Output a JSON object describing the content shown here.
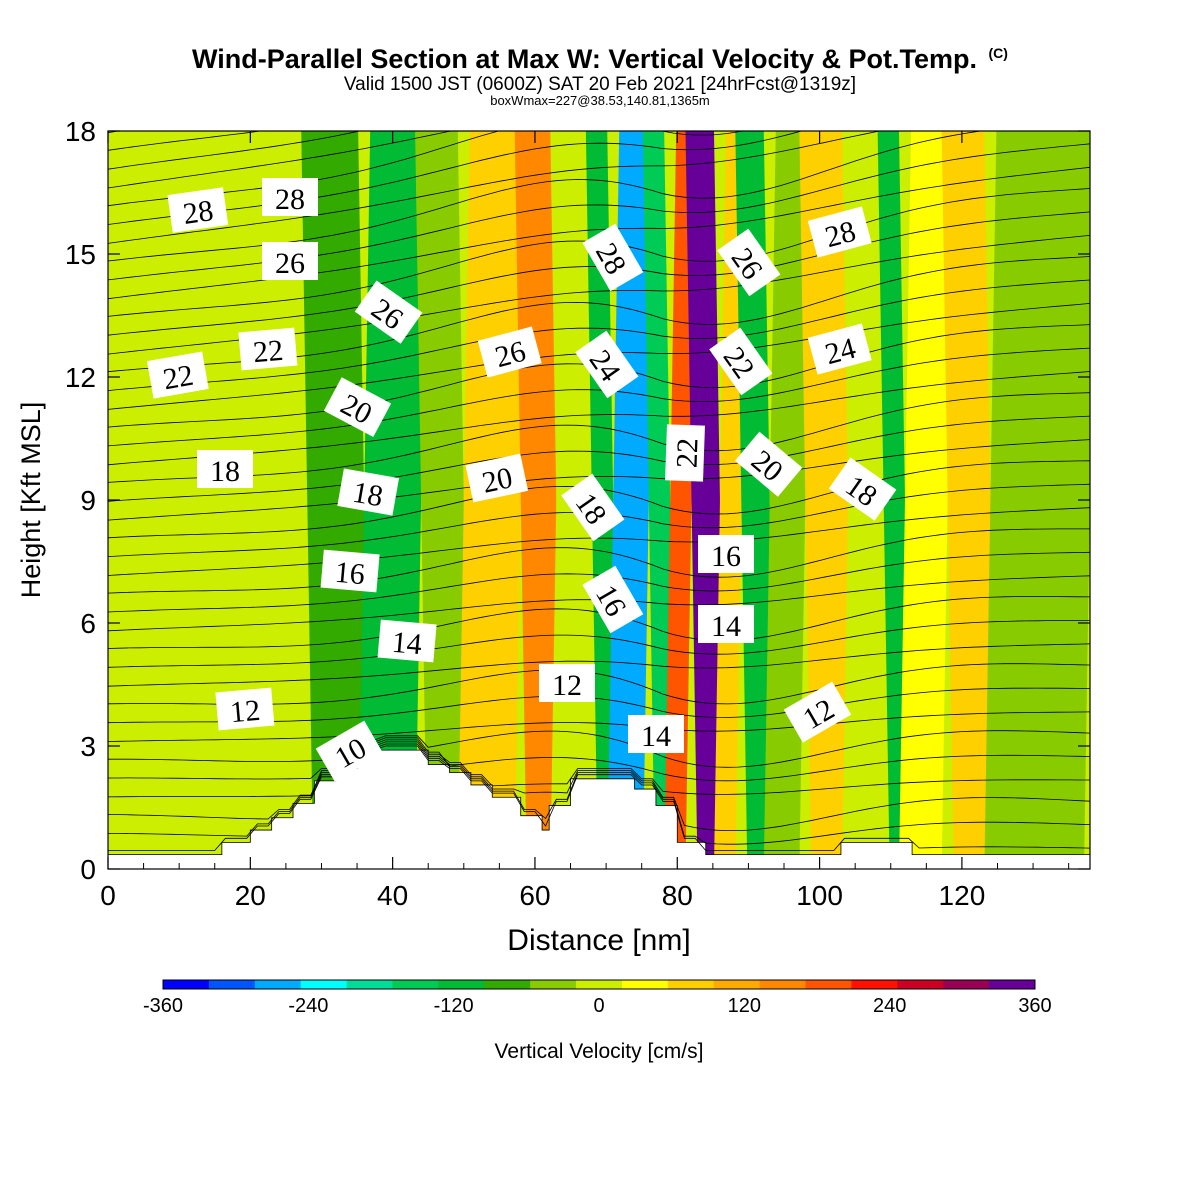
{
  "title": {
    "main": "Wind-Parallel Section at Max W: Vertical Velocity & Pot.Temp.",
    "copyright": "(C)",
    "valid": "Valid 1500 JST (0600Z) SAT 20 Feb 2021 [24hrFcst@1319z]",
    "box": "boxWmax=227@38.53,140.81,1365m"
  },
  "chart_data": {
    "type": "contour",
    "xlabel": "Distance [nm]",
    "ylabel": "Height [Kft MSL]",
    "xlim": [
      0,
      138
    ],
    "ylim": [
      0,
      18
    ],
    "xticks": [
      0,
      20,
      40,
      60,
      80,
      100,
      120
    ],
    "yticks": [
      0,
      3,
      6,
      9,
      12,
      15,
      18
    ],
    "colorbar": {
      "label": "Vertical Velocity [cm/s]",
      "range": [
        -360,
        360
      ],
      "tick_labels": [
        -360,
        -240,
        -120,
        0,
        120,
        240,
        360
      ],
      "colors": [
        "#0000ff",
        "#0055ff",
        "#00aaff",
        "#00ffff",
        "#00dd99",
        "#00cc55",
        "#00bb33",
        "#33aa00",
        "#88cc00",
        "#ccee00",
        "#ffff00",
        "#ffd000",
        "#ffaa00",
        "#ff8800",
        "#ff5500",
        "#ff1100",
        "#cc0022",
        "#990055",
        "#660099"
      ]
    },
    "vertical_velocity_bands": [
      {
        "x": [
          28,
          36
        ],
        "w": -60
      },
      {
        "x": [
          36,
          44
        ],
        "w": -130
      },
      {
        "x": [
          44,
          50
        ],
        "w": -40
      },
      {
        "x": [
          50,
          58
        ],
        "w": 80
      },
      {
        "x": [
          58,
          63
        ],
        "w": 150
      },
      {
        "x": [
          63,
          68
        ],
        "w": -10
      },
      {
        "x": [
          68,
          71
        ],
        "w": -130
      },
      {
        "x": [
          71,
          76
        ],
        "w": -280
      },
      {
        "x": [
          76,
          79
        ],
        "w": -150
      },
      {
        "x": [
          79,
          82
        ],
        "w": 200
      },
      {
        "x": [
          82,
          86
        ],
        "w": 340
      },
      {
        "x": [
          86,
          89
        ],
        "w": 60
      },
      {
        "x": [
          89,
          93
        ],
        "w": -120
      },
      {
        "x": [
          93,
          98
        ],
        "w": -20
      },
      {
        "x": [
          98,
          104
        ],
        "w": 80
      },
      {
        "x": [
          104,
          109
        ],
        "w": -10
      },
      {
        "x": [
          109,
          112
        ],
        "w": -120
      },
      {
        "x": [
          112,
          118
        ],
        "w": 20
      },
      {
        "x": [
          118,
          124
        ],
        "w": 70
      },
      {
        "x": [
          124,
          138
        ],
        "w": -40
      }
    ],
    "terrain": [
      [
        0,
        0.35
      ],
      [
        16,
        0.35
      ],
      [
        16,
        0.65
      ],
      [
        20,
        0.65
      ],
      [
        20,
        0.95
      ],
      [
        23,
        0.95
      ],
      [
        23,
        1.25
      ],
      [
        26,
        1.25
      ],
      [
        26,
        1.6
      ],
      [
        29,
        1.6
      ],
      [
        29,
        2.15
      ],
      [
        32,
        2.15
      ],
      [
        32,
        2.45
      ],
      [
        35,
        2.45
      ],
      [
        35,
        2.8
      ],
      [
        38,
        2.8
      ],
      [
        38,
        2.9
      ],
      [
        45,
        2.9
      ],
      [
        45,
        2.55
      ],
      [
        48,
        2.55
      ],
      [
        48,
        2.35
      ],
      [
        51,
        2.35
      ],
      [
        51,
        2.05
      ],
      [
        54,
        2.05
      ],
      [
        54,
        1.75
      ],
      [
        58,
        1.75
      ],
      [
        58,
        1.3
      ],
      [
        61,
        1.3
      ],
      [
        61,
        0.95
      ],
      [
        62,
        0.95
      ],
      [
        62,
        1.55
      ],
      [
        65,
        1.55
      ],
      [
        65,
        2.2
      ],
      [
        74,
        2.2
      ],
      [
        74,
        1.95
      ],
      [
        77,
        1.95
      ],
      [
        77,
        1.55
      ],
      [
        80,
        1.55
      ],
      [
        80,
        0.65
      ],
      [
        84,
        0.65
      ],
      [
        84,
        0.35
      ],
      [
        103,
        0.35
      ],
      [
        103,
        0.65
      ],
      [
        113,
        0.65
      ],
      [
        113,
        0.35
      ],
      [
        138,
        0.35
      ]
    ],
    "theta_contour_labels": [
      "28",
      "28",
      "26",
      "26",
      "22",
      "22",
      "20",
      "18",
      "18",
      "16",
      "14",
      "12",
      "10",
      "26",
      "20",
      "12",
      "28",
      "24",
      "18",
      "16",
      "14",
      "22",
      "16",
      "14",
      "26",
      "22",
      "20",
      "28",
      "24",
      "18",
      "12"
    ]
  }
}
